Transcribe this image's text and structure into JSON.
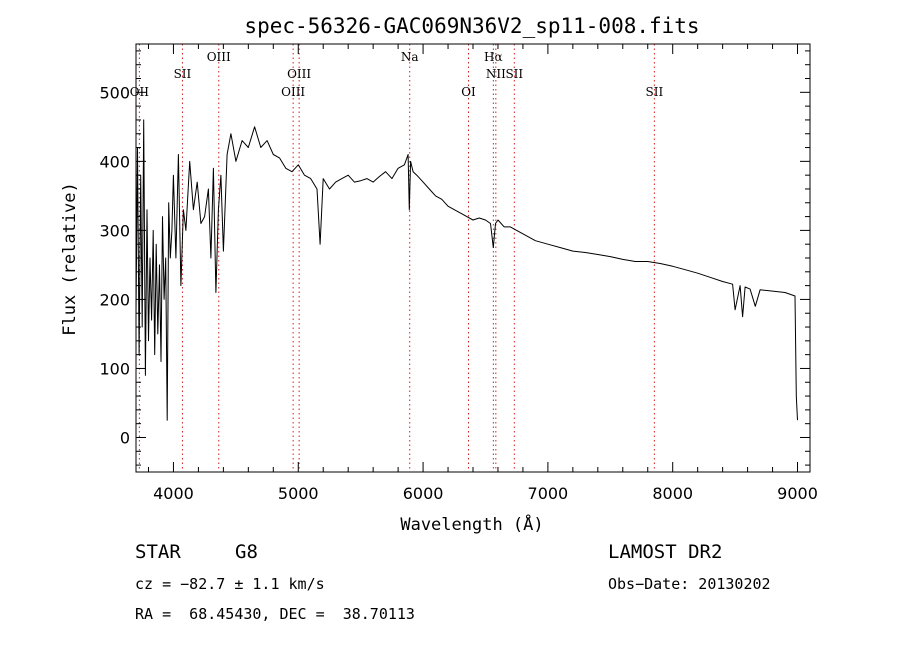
{
  "chart_data": {
    "type": "line",
    "title": "spec-56326-GAC069N36V2_sp11-008.fits",
    "xlabel": "Wavelength (Å)",
    "ylabel": "Flux (relative)",
    "xlim": [
      3700,
      9100
    ],
    "ylim": [
      -50,
      570
    ],
    "xticks": [
      4000,
      5000,
      6000,
      7000,
      8000,
      9000
    ],
    "yticks": [
      0,
      100,
      200,
      300,
      400,
      500
    ],
    "series": [
      {
        "name": "flux",
        "x": [
          3700,
          3712,
          3725,
          3738,
          3750,
          3762,
          3775,
          3788,
          3800,
          3812,
          3825,
          3838,
          3850,
          3862,
          3875,
          3888,
          3900,
          3912,
          3925,
          3938,
          3950,
          3962,
          3975,
          3988,
          4000,
          4020,
          4040,
          4060,
          4080,
          4100,
          4130,
          4160,
          4190,
          4220,
          4250,
          4280,
          4300,
          4320,
          4340,
          4360,
          4380,
          4400,
          4430,
          4460,
          4500,
          4550,
          4600,
          4650,
          4700,
          4750,
          4800,
          4850,
          4900,
          4950,
          5000,
          5050,
          5100,
          5150,
          5175,
          5200,
          5250,
          5300,
          5350,
          5400,
          5450,
          5500,
          5550,
          5600,
          5650,
          5700,
          5750,
          5800,
          5850,
          5880,
          5890,
          5900,
          5920,
          5950,
          6000,
          6050,
          6100,
          6150,
          6200,
          6250,
          6300,
          6350,
          6400,
          6450,
          6500,
          6540,
          6563,
          6580,
          6600,
          6650,
          6700,
          6750,
          6800,
          6900,
          7000,
          7100,
          7200,
          7300,
          7400,
          7500,
          7600,
          7700,
          7800,
          7900,
          8000,
          8100,
          8200,
          8300,
          8400,
          8480,
          8500,
          8540,
          8560,
          8580,
          8620,
          8662,
          8700,
          8800,
          8900,
          8980,
          8990,
          9000
        ],
        "y": [
          180,
          420,
          120,
          380,
          160,
          460,
          90,
          330,
          140,
          260,
          170,
          300,
          120,
          280,
          150,
          250,
          110,
          320,
          200,
          260,
          25,
          340,
          260,
          300,
          380,
          260,
          410,
          220,
          330,
          300,
          400,
          330,
          370,
          310,
          320,
          360,
          260,
          390,
          210,
          330,
          380,
          270,
          410,
          440,
          400,
          430,
          420,
          450,
          420,
          430,
          410,
          405,
          390,
          385,
          395,
          380,
          375,
          360,
          280,
          375,
          360,
          370,
          375,
          380,
          370,
          372,
          375,
          370,
          378,
          385,
          375,
          390,
          395,
          410,
          330,
          400,
          385,
          380,
          370,
          360,
          350,
          345,
          335,
          330,
          325,
          320,
          315,
          318,
          315,
          310,
          275,
          310,
          315,
          305,
          305,
          300,
          295,
          285,
          280,
          275,
          270,
          268,
          265,
          262,
          258,
          255,
          255,
          252,
          248,
          243,
          238,
          232,
          226,
          222,
          185,
          220,
          175,
          218,
          215,
          190,
          214,
          212,
          210,
          205,
          60,
          25
        ]
      }
    ],
    "emission_lines": [
      {
        "label": "OII",
        "wave": 3727,
        "row": 2
      },
      {
        "label": "SII",
        "wave": 4072,
        "row": 1
      },
      {
        "label": "OIII",
        "wave": 4363,
        "row": 0
      },
      {
        "label": "OIII",
        "wave": 4959,
        "row": 2
      },
      {
        "label": "OIII",
        "wave": 5007,
        "row": 1
      },
      {
        "label": "Na",
        "wave": 5893,
        "row": 0
      },
      {
        "label": "OI",
        "wave": 6364,
        "row": 2
      },
      {
        "label": "Hα",
        "wave": 6563,
        "row": 0
      },
      {
        "label": "NII",
        "wave": 6583,
        "row": 1
      },
      {
        "label": "SII",
        "wave": 6731,
        "row": 1
      },
      {
        "label": "SII",
        "wave": 7853,
        "row": 2
      }
    ]
  },
  "footer": {
    "object_class": "STAR",
    "subclass": "G8",
    "cz": "cz = −82.7 ± 1.1 km/s",
    "coords": "RA =  68.45430, DEC =  38.70113",
    "survey": "LAMOST DR2",
    "obs_date": "Obs−Date: 20130202"
  },
  "colors": {
    "spectrum": "#000000",
    "line_marker": "#d62020",
    "axis": "#000000"
  }
}
